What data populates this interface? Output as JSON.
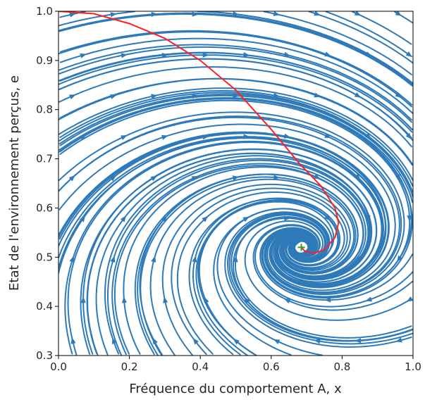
{
  "chart_data": {
    "type": "streamplot",
    "title": "",
    "xlabel": "Fréquence du comportement A, x",
    "ylabel": "Etat de l'environnement perçus, e",
    "xlim": [
      0.0,
      1.0
    ],
    "ylim": [
      0.3,
      1.0
    ],
    "xticks": [
      "0.0",
      "0.2",
      "0.4",
      "0.6",
      "0.8",
      "1.0"
    ],
    "yticks": [
      "0.3",
      "0.4",
      "0.5",
      "0.6",
      "0.7",
      "0.8",
      "0.9",
      "1.0"
    ],
    "grid": false,
    "legend": "none",
    "stream_color": "#2e7ab8",
    "fixed_point": {
      "x": 0.685,
      "y": 0.52,
      "color": "#2ca02c",
      "marker": "+"
    },
    "trajectory": {
      "color": "#ff2020",
      "points": [
        [
          0.0,
          1.0
        ],
        [
          0.1,
          0.995
        ],
        [
          0.2,
          0.975
        ],
        [
          0.3,
          0.945
        ],
        [
          0.4,
          0.9
        ],
        [
          0.5,
          0.84
        ],
        [
          0.6,
          0.76
        ],
        [
          0.68,
          0.69
        ],
        [
          0.74,
          0.645
        ],
        [
          0.78,
          0.6
        ],
        [
          0.79,
          0.57
        ],
        [
          0.78,
          0.54
        ],
        [
          0.75,
          0.515
        ],
        [
          0.72,
          0.508
        ],
        [
          0.695,
          0.512
        ],
        [
          0.685,
          0.52
        ]
      ]
    }
  }
}
